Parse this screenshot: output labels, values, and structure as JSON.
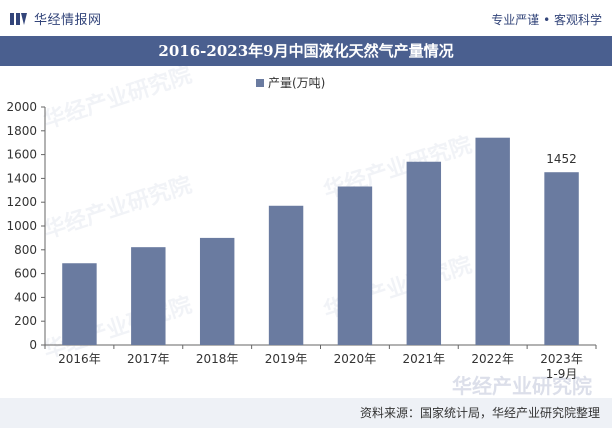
{
  "header": {
    "brand": "华经情报网",
    "slogan": "专业严谨 • 客观科学"
  },
  "watermark": "华经产业研究院",
  "footer": {
    "source": "资料来源：国家统计局，华经产业研究院整理"
  },
  "chart_data": {
    "type": "bar",
    "title": "2016-2023年9月中国液化天然气产量情况",
    "categories": [
      "2016年",
      "2017年",
      "2018年",
      "2019年",
      "2020年",
      "2021年",
      "2022年",
      "2023年\n1-9月"
    ],
    "series": [
      {
        "name": "产量(万吨)",
        "values": [
          687,
          822,
          900,
          1170,
          1332,
          1540,
          1742,
          1452
        ],
        "color": "#6a7ba0"
      }
    ],
    "data_labels": [
      null,
      null,
      null,
      null,
      null,
      null,
      null,
      "1452"
    ],
    "ylim": [
      0,
      2000
    ],
    "yticks": [
      0,
      200,
      400,
      600,
      800,
      1000,
      1200,
      1400,
      1600,
      1800,
      2000
    ],
    "legend_position": "top-center",
    "grid": false
  }
}
